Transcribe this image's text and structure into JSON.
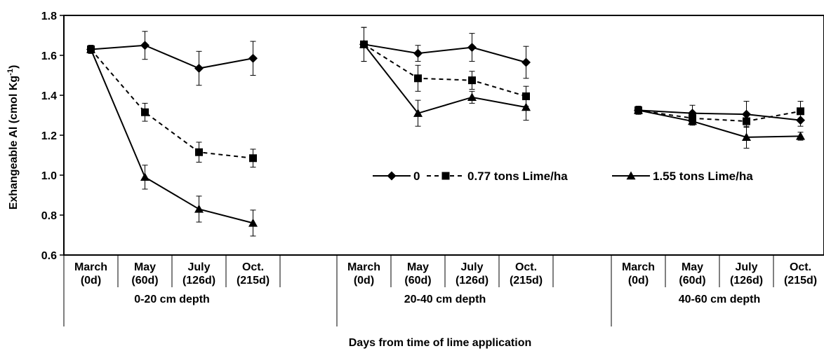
{
  "chart_data": {
    "type": "line",
    "xlabel": "Days from time of lime application",
    "ylabel_main": "Exhangeable Al (cmol Kg",
    "ylabel_sup": "-1",
    "ylabel_end": ")",
    "ylim": [
      0.6,
      1.8
    ],
    "yticks": [
      "0.6",
      "0.8",
      "1.0",
      "1.2",
      "1.4",
      "1.6",
      "1.8"
    ],
    "ytick_values": [
      0.6,
      0.8,
      1.0,
      1.2,
      1.4,
      1.6,
      1.8
    ],
    "grid": false,
    "legend_position": "right-middle",
    "groups": [
      {
        "label": "0-20 cm depth",
        "categories": [
          {
            "line1": "March",
            "line2": "(0d)"
          },
          {
            "line1": "May",
            "line2": "(60d)"
          },
          {
            "line1": "July",
            "line2": "(126d)"
          },
          {
            "line1": "Oct.",
            "line2": "(215d)"
          }
        ]
      },
      {
        "label": "20-40 cm depth",
        "categories": [
          {
            "line1": "March",
            "line2": "(0d)"
          },
          {
            "line1": "May",
            "line2": "(60d)"
          },
          {
            "line1": "July",
            "line2": "(126d)"
          },
          {
            "line1": "Oct.",
            "line2": "(215d)"
          }
        ]
      },
      {
        "label": "40-60 cm depth",
        "categories": [
          {
            "line1": "March",
            "line2": "(0d)"
          },
          {
            "line1": "May",
            "line2": "(60d)"
          },
          {
            "line1": "July",
            "line2": "(126d)"
          },
          {
            "line1": "Oct.",
            "line2": "(215d)"
          }
        ]
      }
    ],
    "series": [
      {
        "name": "0",
        "marker": "diamond",
        "dash": "solid",
        "values": [
          [
            1.63,
            1.65,
            1.535,
            1.585
          ],
          [
            1.655,
            1.61,
            1.64,
            1.565
          ],
          [
            1.325,
            1.31,
            1.305,
            1.275
          ]
        ],
        "errors": [
          [
            0.02,
            0.07,
            0.085,
            0.085
          ],
          [
            0.085,
            0.04,
            0.07,
            0.08
          ],
          [
            0.02,
            0.04,
            0.065,
            0.03
          ]
        ]
      },
      {
        "name": "0.77 tons Lime/ha",
        "marker": "square",
        "dash": "dashed",
        "values": [
          [
            1.63,
            1.315,
            1.115,
            1.085
          ],
          [
            1.655,
            1.485,
            1.475,
            1.395
          ],
          [
            1.325,
            1.285,
            1.27,
            1.32
          ]
        ],
        "errors": [
          [
            0.02,
            0.045,
            0.05,
            0.045
          ],
          [
            0.085,
            0.065,
            0.045,
            0.05
          ],
          [
            0.02,
            0.025,
            0.03,
            0.05
          ]
        ]
      },
      {
        "name": "1.55 tons Lime/ha",
        "marker": "triangle",
        "dash": "solid",
        "values": [
          [
            1.63,
            0.99,
            0.83,
            0.76
          ],
          [
            1.655,
            1.31,
            1.39,
            1.34
          ],
          [
            1.325,
            1.27,
            1.19,
            1.195
          ]
        ],
        "errors": [
          [
            0.02,
            0.06,
            0.065,
            0.065
          ],
          [
            0.085,
            0.065,
            0.03,
            0.065
          ],
          [
            0.02,
            0.02,
            0.055,
            0.02
          ]
        ]
      }
    ]
  }
}
